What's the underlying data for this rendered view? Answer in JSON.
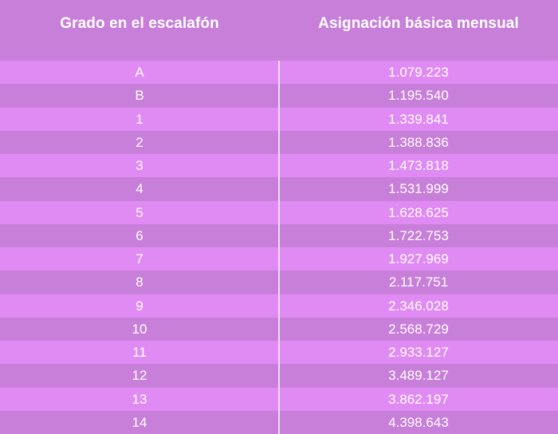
{
  "table": {
    "headers": {
      "grade": "Grado en el escalafón",
      "salary": "Asignación básica mensual"
    },
    "rows": [
      {
        "grade": "A",
        "salary": "1.079.223"
      },
      {
        "grade": "B",
        "salary": "1.195.540"
      },
      {
        "grade": "1",
        "salary": "1.339.841"
      },
      {
        "grade": "2",
        "salary": "1.388.836"
      },
      {
        "grade": "3",
        "salary": "1.473.818"
      },
      {
        "grade": "4",
        "salary": "1.531.999"
      },
      {
        "grade": "5",
        "salary": "1.628.625"
      },
      {
        "grade": "6",
        "salary": "1.722.753"
      },
      {
        "grade": "7",
        "salary": "1.927.969"
      },
      {
        "grade": "8",
        "salary": "2.117.751"
      },
      {
        "grade": "9",
        "salary": "2.346.028"
      },
      {
        "grade": "10",
        "salary": "2.568.729"
      },
      {
        "grade": "11",
        "salary": "2.933.127"
      },
      {
        "grade": "12",
        "salary": "3.489.127"
      },
      {
        "grade": "13",
        "salary": "3.862.197"
      },
      {
        "grade": "14",
        "salary": "4.398.643"
      }
    ]
  },
  "colors": {
    "header_bg": "#c77fd9",
    "row_light": "#df8bf3",
    "row_dark": "#c77fd9",
    "text": "#ffffff",
    "divider": "#f2dcf8"
  }
}
